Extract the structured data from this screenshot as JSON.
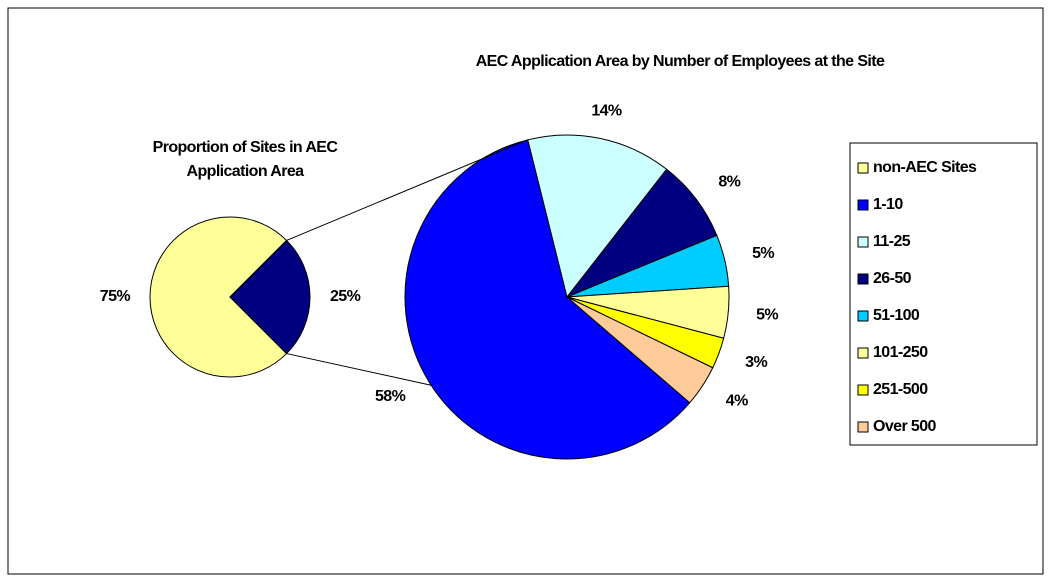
{
  "chart_data": [
    {
      "type": "pie",
      "title": "Proportion of Sites in AEC Application Area",
      "categories": [
        "non-AEC Sites",
        null
      ],
      "values": [
        75,
        25
      ],
      "value_labels": [
        "75%",
        "25%"
      ],
      "colors": [
        "#FFFF99",
        "#000080"
      ]
    },
    {
      "type": "pie",
      "title": "AEC Application Area by Number of Employees at the Site",
      "categories": [
        "1-10",
        "11-25",
        "26-50",
        "51-100",
        "101-250",
        "251-500",
        "Over 500"
      ],
      "values": [
        58,
        14,
        8,
        5,
        5,
        3,
        4
      ],
      "value_labels": [
        "58%",
        "14%",
        "8%",
        "5%",
        "5%",
        "3%",
        "4%"
      ],
      "colors": [
        "#0000FF",
        "#CCFFFF",
        "#000080",
        "#00CCFF",
        "#FFFF99",
        "#FFFF00",
        "#FFCC99"
      ]
    }
  ]
}
